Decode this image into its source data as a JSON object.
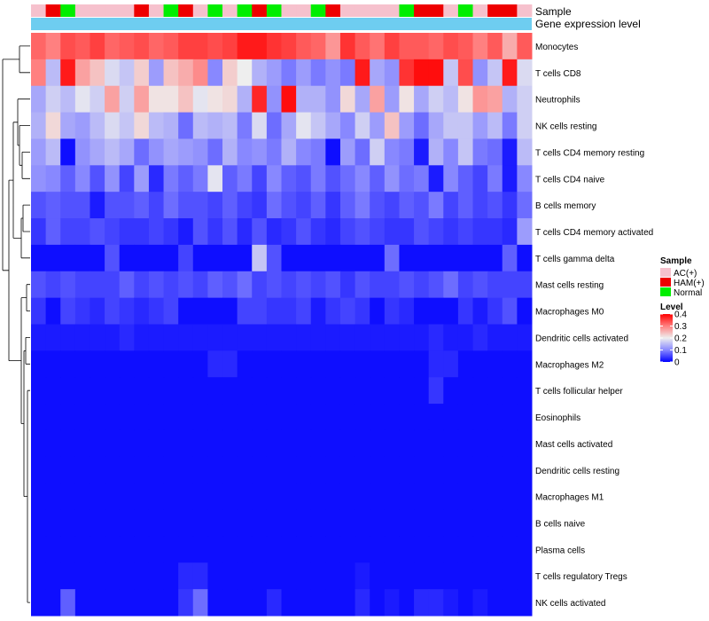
{
  "chart_data": {
    "type": "heatmap",
    "title": "",
    "annotation_labels": {
      "sample": "Sample",
      "expression": "Gene expression level"
    },
    "sample_groups": [
      "AC(+)",
      "HAM(+)",
      "Normal"
    ],
    "group_colors": {
      "AC(+)": "#f6c1cd",
      "HAM(+)": "#ee0000",
      "Normal": "#00ee00"
    },
    "expression_bar_color": "#6ecdf0",
    "sample_annotation": [
      "AC(+)",
      "HAM(+)",
      "Normal",
      "AC(+)",
      "AC(+)",
      "AC(+)",
      "AC(+)",
      "HAM(+)",
      "AC(+)",
      "Normal",
      "HAM(+)",
      "AC(+)",
      "Normal",
      "AC(+)",
      "Normal",
      "HAM(+)",
      "Normal",
      "AC(+)",
      "AC(+)",
      "Normal",
      "HAM(+)",
      "AC(+)",
      "AC(+)",
      "AC(+)",
      "AC(+)",
      "Normal",
      "HAM(+)",
      "HAM(+)",
      "AC(+)",
      "Normal",
      "AC(+)",
      "HAM(+)",
      "HAM(+)",
      "AC(+)"
    ],
    "rows": [
      "Monocytes",
      "T cells CD8",
      "Neutrophils",
      "NK cells resting",
      "T cells CD4 memory resting",
      "T cells CD4 naive",
      "B cells memory",
      "T cells CD4 memory activated",
      "T cells gamma delta",
      "Mast cells resting",
      "Macrophages M0",
      "Dendritic cells activated",
      "Macrophages M2",
      "T cells follicular helper",
      "Eosinophils",
      "Mast cells activated",
      "Dendritic cells resting",
      "Macrophages M1",
      "B cells naive",
      "Plasma cells",
      "T cells regulatory  Tregs",
      "NK cells activated"
    ],
    "values": [
      [
        0.32,
        0.3,
        0.34,
        0.33,
        0.35,
        0.32,
        0.33,
        0.34,
        0.32,
        0.33,
        0.35,
        0.35,
        0.34,
        0.35,
        0.38,
        0.38,
        0.36,
        0.35,
        0.33,
        0.32,
        0.28,
        0.36,
        0.33,
        0.31,
        0.35,
        0.33,
        0.33,
        0.32,
        0.34,
        0.33,
        0.3,
        0.33,
        0.26,
        0.33
      ],
      [
        0.3,
        0.15,
        0.38,
        0.27,
        0.24,
        0.18,
        0.16,
        0.23,
        0.12,
        0.24,
        0.26,
        0.29,
        0.1,
        0.23,
        0.2,
        0.14,
        0.12,
        0.09,
        0.12,
        0.09,
        0.11,
        0.09,
        0.38,
        0.13,
        0.11,
        0.36,
        0.39,
        0.39,
        0.16,
        0.34,
        0.11,
        0.16,
        0.38,
        0.18
      ],
      [
        0.13,
        0.17,
        0.15,
        0.19,
        0.17,
        0.27,
        0.17,
        0.27,
        0.21,
        0.21,
        0.24,
        0.19,
        0.21,
        0.22,
        0.14,
        0.37,
        0.11,
        0.39,
        0.14,
        0.14,
        0.11,
        0.22,
        0.13,
        0.27,
        0.12,
        0.21,
        0.13,
        0.17,
        0.15,
        0.21,
        0.28,
        0.27,
        0.14,
        0.17
      ],
      [
        0.14,
        0.22,
        0.13,
        0.12,
        0.15,
        0.18,
        0.16,
        0.22,
        0.15,
        0.14,
        0.08,
        0.15,
        0.14,
        0.15,
        0.09,
        0.18,
        0.08,
        0.13,
        0.19,
        0.16,
        0.13,
        0.1,
        0.17,
        0.12,
        0.24,
        0.12,
        0.08,
        0.13,
        0.16,
        0.16,
        0.12,
        0.15,
        0.09,
        0.17
      ],
      [
        0.12,
        0.15,
        0.01,
        0.11,
        0.13,
        0.15,
        0.13,
        0.08,
        0.11,
        0.13,
        0.12,
        0.11,
        0.08,
        0.14,
        0.1,
        0.11,
        0.09,
        0.14,
        0.1,
        0.09,
        0.01,
        0.12,
        0.08,
        0.17,
        0.1,
        0.09,
        0.02,
        0.14,
        0.1,
        0.16,
        0.09,
        0.08,
        0.02,
        0.15
      ],
      [
        0.11,
        0.1,
        0.07,
        0.1,
        0.06,
        0.11,
        0.05,
        0.12,
        0.03,
        0.09,
        0.07,
        0.09,
        0.19,
        0.07,
        0.09,
        0.05,
        0.1,
        0.07,
        0.06,
        0.09,
        0.06,
        0.08,
        0.1,
        0.07,
        0.11,
        0.08,
        0.09,
        0.02,
        0.1,
        0.07,
        0.05,
        0.09,
        0.02,
        0.1
      ],
      [
        0.06,
        0.07,
        0.06,
        0.06,
        0.02,
        0.06,
        0.06,
        0.07,
        0.05,
        0.08,
        0.06,
        0.06,
        0.05,
        0.07,
        0.05,
        0.04,
        0.08,
        0.06,
        0.05,
        0.07,
        0.04,
        0.07,
        0.09,
        0.06,
        0.05,
        0.07,
        0.06,
        0.09,
        0.05,
        0.07,
        0.05,
        0.06,
        0.04,
        0.08
      ],
      [
        0.04,
        0.07,
        0.05,
        0.05,
        0.06,
        0.05,
        0.04,
        0.04,
        0.05,
        0.04,
        0.02,
        0.06,
        0.04,
        0.06,
        0.03,
        0.06,
        0.03,
        0.04,
        0.06,
        0.04,
        0.03,
        0.05,
        0.06,
        0.05,
        0.04,
        0.04,
        0.06,
        0.05,
        0.04,
        0.05,
        0.04,
        0.04,
        0.03,
        0.12
      ],
      [
        0.01,
        0.01,
        0.01,
        0.01,
        0.01,
        0.06,
        0.01,
        0.01,
        0.01,
        0.01,
        0.05,
        0.01,
        0.01,
        0.01,
        0.01,
        0.16,
        0.06,
        0.01,
        0.01,
        0.01,
        0.01,
        0.01,
        0.01,
        0.01,
        0.08,
        0.01,
        0.01,
        0.01,
        0.01,
        0.01,
        0.01,
        0.01,
        0.07,
        0.01
      ],
      [
        0.06,
        0.05,
        0.06,
        0.05,
        0.05,
        0.05,
        0.07,
        0.05,
        0.06,
        0.05,
        0.06,
        0.05,
        0.07,
        0.06,
        0.08,
        0.05,
        0.06,
        0.05,
        0.06,
        0.05,
        0.06,
        0.04,
        0.06,
        0.05,
        0.05,
        0.06,
        0.05,
        0.06,
        0.08,
        0.05,
        0.06,
        0.05,
        0.05,
        0.05
      ],
      [
        0.04,
        0.01,
        0.05,
        0.04,
        0.03,
        0.05,
        0.04,
        0.03,
        0.04,
        0.05,
        0.01,
        0.01,
        0.01,
        0.01,
        0.05,
        0.05,
        0.04,
        0.04,
        0.05,
        0.02,
        0.04,
        0.05,
        0.04,
        0.01,
        0.04,
        0.03,
        0.01,
        0.01,
        0.01,
        0.04,
        0.02,
        0.04,
        0.06,
        0.01
      ],
      [
        0.02,
        0.02,
        0.02,
        0.02,
        0.02,
        0.02,
        0.03,
        0.02,
        0.02,
        0.02,
        0.02,
        0.02,
        0.02,
        0.02,
        0.02,
        0.02,
        0.02,
        0.02,
        0.02,
        0.02,
        0.02,
        0.02,
        0.02,
        0.02,
        0.02,
        0.02,
        0.02,
        0.03,
        0.02,
        0.02,
        0.03,
        0.02,
        0.02,
        0.02
      ],
      [
        0.01,
        0.01,
        0.01,
        0.01,
        0.01,
        0.01,
        0.01,
        0.01,
        0.01,
        0.01,
        0.01,
        0.01,
        0.03,
        0.03,
        0.01,
        0.01,
        0.01,
        0.01,
        0.01,
        0.01,
        0.01,
        0.01,
        0.01,
        0.01,
        0.01,
        0.01,
        0.01,
        0.03,
        0.03,
        0.01,
        0.01,
        0.01,
        0.01,
        0.01
      ],
      [
        0.01,
        0.01,
        0.01,
        0.01,
        0.01,
        0.01,
        0.01,
        0.01,
        0.01,
        0.01,
        0.01,
        0.01,
        0.01,
        0.01,
        0.01,
        0.01,
        0.01,
        0.01,
        0.01,
        0.01,
        0.01,
        0.01,
        0.01,
        0.01,
        0.01,
        0.01,
        0.01,
        0.04,
        0.01,
        0.01,
        0.01,
        0.01,
        0.01,
        0.01
      ],
      [
        0.01,
        0.01,
        0.01,
        0.01,
        0.01,
        0.01,
        0.01,
        0.01,
        0.01,
        0.01,
        0.01,
        0.01,
        0.01,
        0.01,
        0.01,
        0.01,
        0.01,
        0.01,
        0.01,
        0.01,
        0.01,
        0.01,
        0.01,
        0.01,
        0.01,
        0.01,
        0.01,
        0.01,
        0.01,
        0.01,
        0.01,
        0.01,
        0.01,
        0.01
      ],
      [
        0.01,
        0.01,
        0.01,
        0.01,
        0.01,
        0.01,
        0.01,
        0.01,
        0.01,
        0.01,
        0.01,
        0.01,
        0.01,
        0.01,
        0.01,
        0.01,
        0.01,
        0.01,
        0.01,
        0.01,
        0.01,
        0.01,
        0.01,
        0.01,
        0.01,
        0.01,
        0.01,
        0.01,
        0.01,
        0.01,
        0.01,
        0.01,
        0.01,
        0.01
      ],
      [
        0.01,
        0.01,
        0.01,
        0.01,
        0.01,
        0.01,
        0.01,
        0.01,
        0.01,
        0.01,
        0.01,
        0.01,
        0.01,
        0.01,
        0.01,
        0.01,
        0.01,
        0.01,
        0.01,
        0.01,
        0.01,
        0.01,
        0.01,
        0.01,
        0.01,
        0.01,
        0.01,
        0.01,
        0.01,
        0.01,
        0.01,
        0.01,
        0.01,
        0.01
      ],
      [
        0.01,
        0.01,
        0.01,
        0.01,
        0.01,
        0.01,
        0.01,
        0.01,
        0.01,
        0.01,
        0.01,
        0.01,
        0.01,
        0.01,
        0.01,
        0.01,
        0.01,
        0.01,
        0.01,
        0.01,
        0.01,
        0.01,
        0.01,
        0.01,
        0.01,
        0.01,
        0.01,
        0.01,
        0.01,
        0.01,
        0.01,
        0.01,
        0.01,
        0.01
      ],
      [
        0.01,
        0.01,
        0.01,
        0.01,
        0.01,
        0.01,
        0.01,
        0.01,
        0.01,
        0.01,
        0.01,
        0.01,
        0.01,
        0.01,
        0.01,
        0.01,
        0.01,
        0.01,
        0.01,
        0.01,
        0.01,
        0.01,
        0.01,
        0.01,
        0.01,
        0.01,
        0.01,
        0.01,
        0.01,
        0.01,
        0.01,
        0.01,
        0.01,
        0.01
      ],
      [
        0.01,
        0.01,
        0.01,
        0.01,
        0.01,
        0.01,
        0.01,
        0.01,
        0.01,
        0.01,
        0.01,
        0.01,
        0.01,
        0.01,
        0.01,
        0.01,
        0.01,
        0.01,
        0.01,
        0.01,
        0.01,
        0.01,
        0.01,
        0.01,
        0.01,
        0.01,
        0.01,
        0.01,
        0.01,
        0.01,
        0.01,
        0.01,
        0.01,
        0.01
      ],
      [
        0.01,
        0.01,
        0.01,
        0.01,
        0.01,
        0.01,
        0.01,
        0.01,
        0.01,
        0.01,
        0.03,
        0.03,
        0.01,
        0.01,
        0.01,
        0.01,
        0.01,
        0.01,
        0.01,
        0.01,
        0.01,
        0.01,
        0.02,
        0.01,
        0.01,
        0.01,
        0.01,
        0.01,
        0.01,
        0.01,
        0.01,
        0.01,
        0.01,
        0.01
      ],
      [
        0.01,
        0.01,
        0.07,
        0.01,
        0.01,
        0.01,
        0.01,
        0.01,
        0.01,
        0.01,
        0.04,
        0.08,
        0.01,
        0.01,
        0.01,
        0.01,
        0.03,
        0.01,
        0.01,
        0.01,
        0.01,
        0.01,
        0.03,
        0.01,
        0.02,
        0.01,
        0.03,
        0.03,
        0.02,
        0.01,
        0.02,
        0.01,
        0.01,
        0.01
      ]
    ],
    "color_scale": {
      "min": 0,
      "max": 0.4,
      "stops": [
        {
          "value": 0,
          "color": "#0000ff"
        },
        {
          "value": 0.1,
          "color": "#8888ff"
        },
        {
          "value": 0.2,
          "color": "#eeeeee"
        },
        {
          "value": 0.3,
          "color": "#ff8080"
        },
        {
          "value": 0.4,
          "color": "#ff0000"
        }
      ]
    },
    "legend": {
      "sample_title": "Sample",
      "sample_items": [
        "AC(+)",
        "HAM(+)",
        "Normal"
      ],
      "level_title": "Level",
      "level_ticks": [
        "0.4",
        "0.3",
        "0.2",
        "0.1",
        "0"
      ],
      "level_tick_values": [
        0.4,
        0.3,
        0.2,
        0.1,
        0
      ],
      "placement": "right"
    },
    "row_dendrogram": true
  }
}
